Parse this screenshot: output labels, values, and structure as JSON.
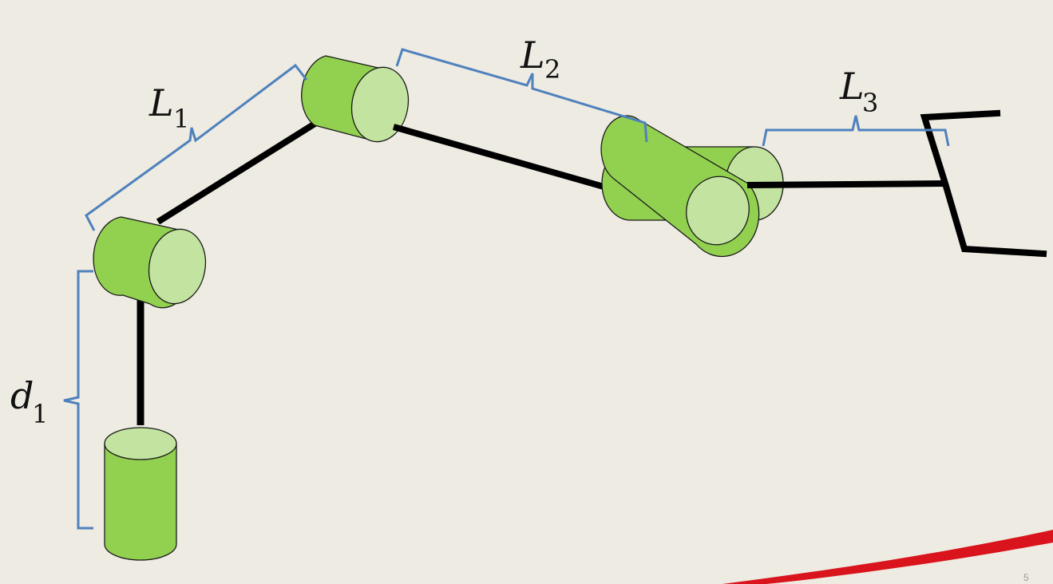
{
  "labels": {
    "d1": {
      "main": "d",
      "sub": "1"
    },
    "L1": {
      "main": "L",
      "sub": "1"
    },
    "L2": {
      "main": "L",
      "sub": "2"
    },
    "L3": {
      "main": "L",
      "sub": "3"
    }
  },
  "slide_number": "5",
  "colors": {
    "background": "#eeebe2",
    "cylinder_body": "#92d050",
    "cylinder_face": "#c3e4a0",
    "link": "#000000",
    "bracket": "#4f81bd",
    "swoosh": "#d9141c"
  }
}
